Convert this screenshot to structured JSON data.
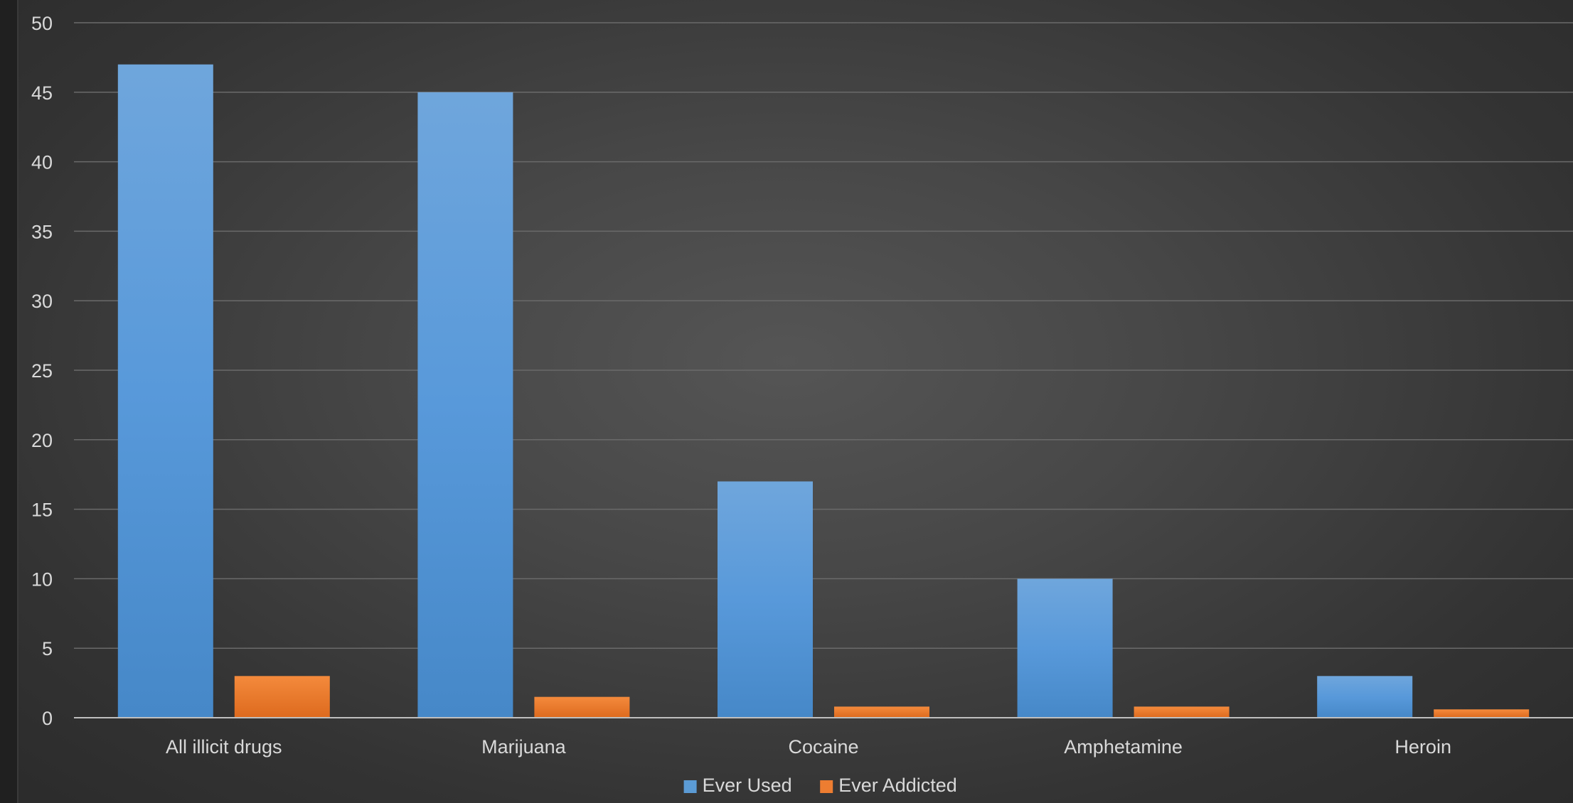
{
  "chart_data": {
    "type": "bar",
    "title": "",
    "xlabel": "",
    "ylabel": "",
    "ylim": [
      0,
      50
    ],
    "y_ticks": [
      0,
      5,
      10,
      15,
      20,
      25,
      30,
      35,
      40,
      45,
      50
    ],
    "grid": true,
    "legend_position": "bottom",
    "categories": [
      "All illicit drugs",
      "Marijuana",
      "Cocaine",
      "Amphetamine",
      "Heroin"
    ],
    "series": [
      {
        "name": "Ever Used",
        "values": [
          47,
          45,
          17,
          10,
          3
        ],
        "color": "#5b9bd5"
      },
      {
        "name": "Ever Addicted",
        "values": [
          3,
          1.5,
          0.8,
          0.8,
          0.6
        ],
        "color": "#ed7d31"
      }
    ]
  }
}
